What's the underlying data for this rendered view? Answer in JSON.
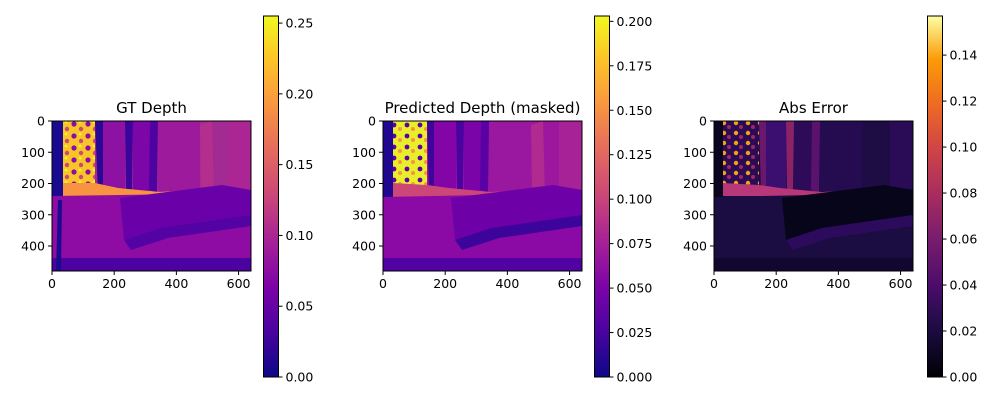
{
  "chart_data": [
    {
      "type": "heatmap",
      "title": "GT Depth",
      "colormap": "plasma",
      "image_size": [
        640,
        480
      ],
      "xlim": [
        0,
        640
      ],
      "ylim": [
        480,
        0
      ],
      "x_ticks": [
        0,
        200,
        400,
        600
      ],
      "y_ticks": [
        0,
        100,
        200,
        300,
        400
      ],
      "colorbar": {
        "range": [
          0,
          0.255
        ],
        "ticks": [
          "0.00",
          "0.05",
          "0.10",
          "0.15",
          "0.20",
          "0.25"
        ],
        "tick_values": [
          0,
          0.05,
          0.1,
          0.15,
          0.2,
          0.25
        ]
      }
    },
    {
      "type": "heatmap",
      "title": "Predicted Depth (masked)",
      "colormap": "plasma",
      "image_size": [
        640,
        480
      ],
      "xlim": [
        0,
        640
      ],
      "ylim": [
        480,
        0
      ],
      "x_ticks": [
        0,
        200,
        400,
        600
      ],
      "y_ticks": [
        0,
        100,
        200,
        300,
        400
      ],
      "colorbar": {
        "range": [
          0,
          0.203
        ],
        "ticks": [
          "0.000",
          "0.025",
          "0.050",
          "0.075",
          "0.100",
          "0.125",
          "0.150",
          "0.175",
          "0.200"
        ],
        "tick_values": [
          0,
          0.025,
          0.05,
          0.075,
          0.1,
          0.125,
          0.15,
          0.175,
          0.2
        ]
      }
    },
    {
      "type": "heatmap",
      "title": "Abs Error",
      "colormap": "inferno",
      "image_size": [
        640,
        480
      ],
      "xlim": [
        0,
        640
      ],
      "ylim": [
        480,
        0
      ],
      "x_ticks": [
        0,
        200,
        400,
        600
      ],
      "y_ticks": [
        0,
        100,
        200,
        300,
        400
      ],
      "colorbar": {
        "range": [
          0,
          0.157
        ],
        "ticks": [
          "0.00",
          "0.02",
          "0.04",
          "0.06",
          "0.08",
          "0.10",
          "0.12",
          "0.14"
        ],
        "tick_values": [
          0,
          0.02,
          0.04,
          0.06,
          0.08,
          0.1,
          0.12,
          0.14
        ]
      }
    }
  ]
}
